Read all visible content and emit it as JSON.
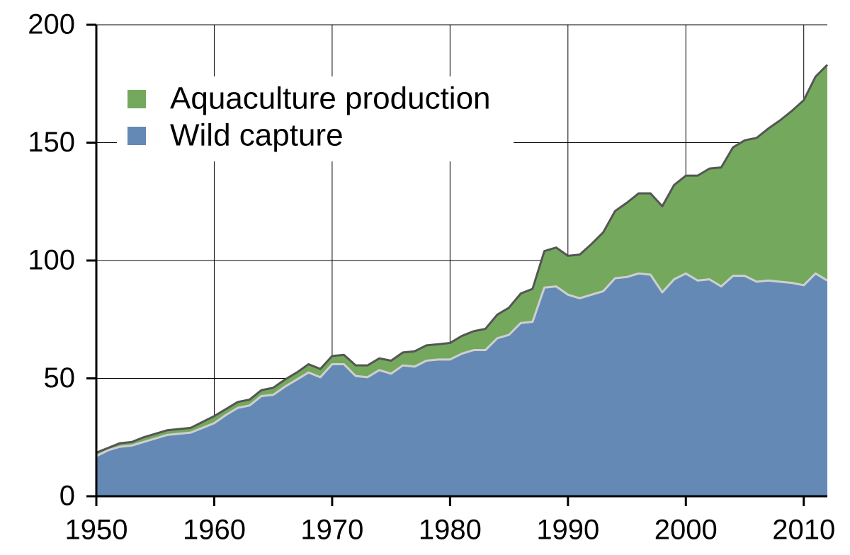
{
  "chart_data": {
    "type": "stacked_area",
    "x": [
      1950,
      1951,
      1952,
      1953,
      1954,
      1955,
      1956,
      1957,
      1958,
      1959,
      1960,
      1961,
      1962,
      1963,
      1964,
      1965,
      1966,
      1967,
      1968,
      1969,
      1970,
      1971,
      1972,
      1973,
      1974,
      1975,
      1976,
      1977,
      1978,
      1979,
      1980,
      1981,
      1982,
      1983,
      1984,
      1985,
      1986,
      1987,
      1988,
      1989,
      1990,
      1991,
      1992,
      1993,
      1994,
      1995,
      1996,
      1997,
      1998,
      1999,
      2000,
      2001,
      2002,
      2003,
      2004,
      2005,
      2006,
      2007,
      2008,
      2009,
      2010,
      2011,
      2012
    ],
    "series": [
      {
        "name": "Wild capture",
        "color": "#6489b5",
        "edge_color": "#cfcfcf",
        "values": [
          17,
          19.5,
          21,
          21.5,
          23,
          24.5,
          26,
          26.5,
          27,
          29,
          31,
          34.5,
          37.5,
          38.5,
          42.5,
          43,
          46.5,
          49.5,
          52.5,
          50.5,
          56,
          56,
          51,
          50.5,
          53.5,
          52,
          55.5,
          55,
          57.5,
          58,
          58,
          60.5,
          62,
          62,
          67,
          68.5,
          73.5,
          74,
          88.5,
          89,
          85.5,
          84,
          85.5,
          87,
          92.5,
          93,
          94.5,
          94,
          86.5,
          92,
          94.5,
          91.5,
          92,
          89,
          93.5,
          93.5,
          91,
          91.5,
          91,
          90.5,
          89.5,
          94.5,
          91.5
        ]
      },
      {
        "name": "Aquaculture production",
        "color": "#74a95d",
        "edge_color": "#555555",
        "values": [
          1.5,
          1,
          1.5,
          1.5,
          2,
          2,
          2,
          2,
          2,
          2.5,
          3,
          2.5,
          2.5,
          2.5,
          2.5,
          3,
          3,
          3,
          3.5,
          3.5,
          3.5,
          4,
          4.5,
          5,
          5,
          5.5,
          5.5,
          6.5,
          6.5,
          6.5,
          7,
          7.5,
          8,
          9,
          10,
          11.5,
          12.5,
          14,
          15.5,
          16.5,
          16.5,
          18.5,
          21.5,
          25,
          28.5,
          31.5,
          34,
          34.5,
          36.5,
          40,
          41.5,
          44.5,
          47,
          50.5,
          54.5,
          57.5,
          61,
          64.5,
          68.5,
          73,
          78.5,
          83.5,
          91.5
        ]
      }
    ],
    "xlim": [
      1950,
      2012
    ],
    "xticks": [
      1950,
      1960,
      1970,
      1980,
      1990,
      2000,
      2010
    ],
    "ylim": [
      0,
      200
    ],
    "yticks": [
      0,
      50,
      100,
      150,
      200
    ],
    "grid": true,
    "legend": "upper left"
  }
}
